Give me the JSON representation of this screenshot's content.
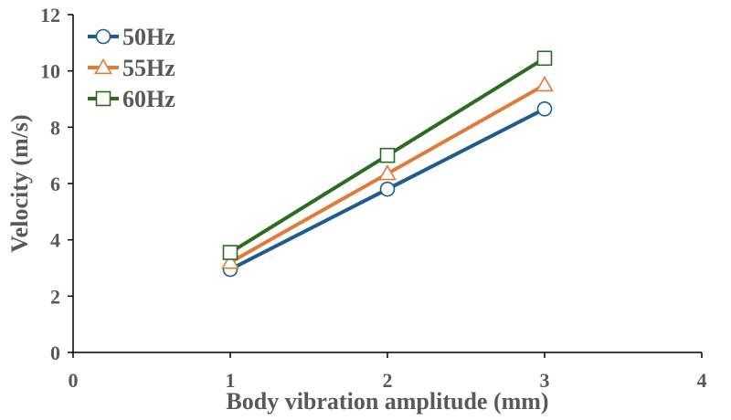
{
  "chart_data": {
    "type": "line",
    "title": "",
    "xlabel": "Body vibration amplitude (mm)",
    "ylabel": "Velocity (m/s)",
    "xlim": [
      0,
      4
    ],
    "ylim": [
      0,
      12
    ],
    "xticks": [
      "0",
      "1",
      "2",
      "3",
      "4"
    ],
    "yticks": [
      "0",
      "2",
      "4",
      "6",
      "8",
      "10",
      "12"
    ],
    "grid": false,
    "legend_position": "top-left",
    "x": [
      1,
      2,
      3
    ],
    "series": [
      {
        "name": "50Hz",
        "color": "#1F5C8B",
        "marker": "circle",
        "values": [
          2.95,
          5.8,
          8.65
        ]
      },
      {
        "name": "55Hz",
        "color": "#E07B39",
        "marker": "triangle",
        "values": [
          3.2,
          6.35,
          9.5
        ]
      },
      {
        "name": "60Hz",
        "color": "#2E6B22",
        "marker": "square",
        "values": [
          3.55,
          7.0,
          10.45
        ]
      }
    ]
  }
}
